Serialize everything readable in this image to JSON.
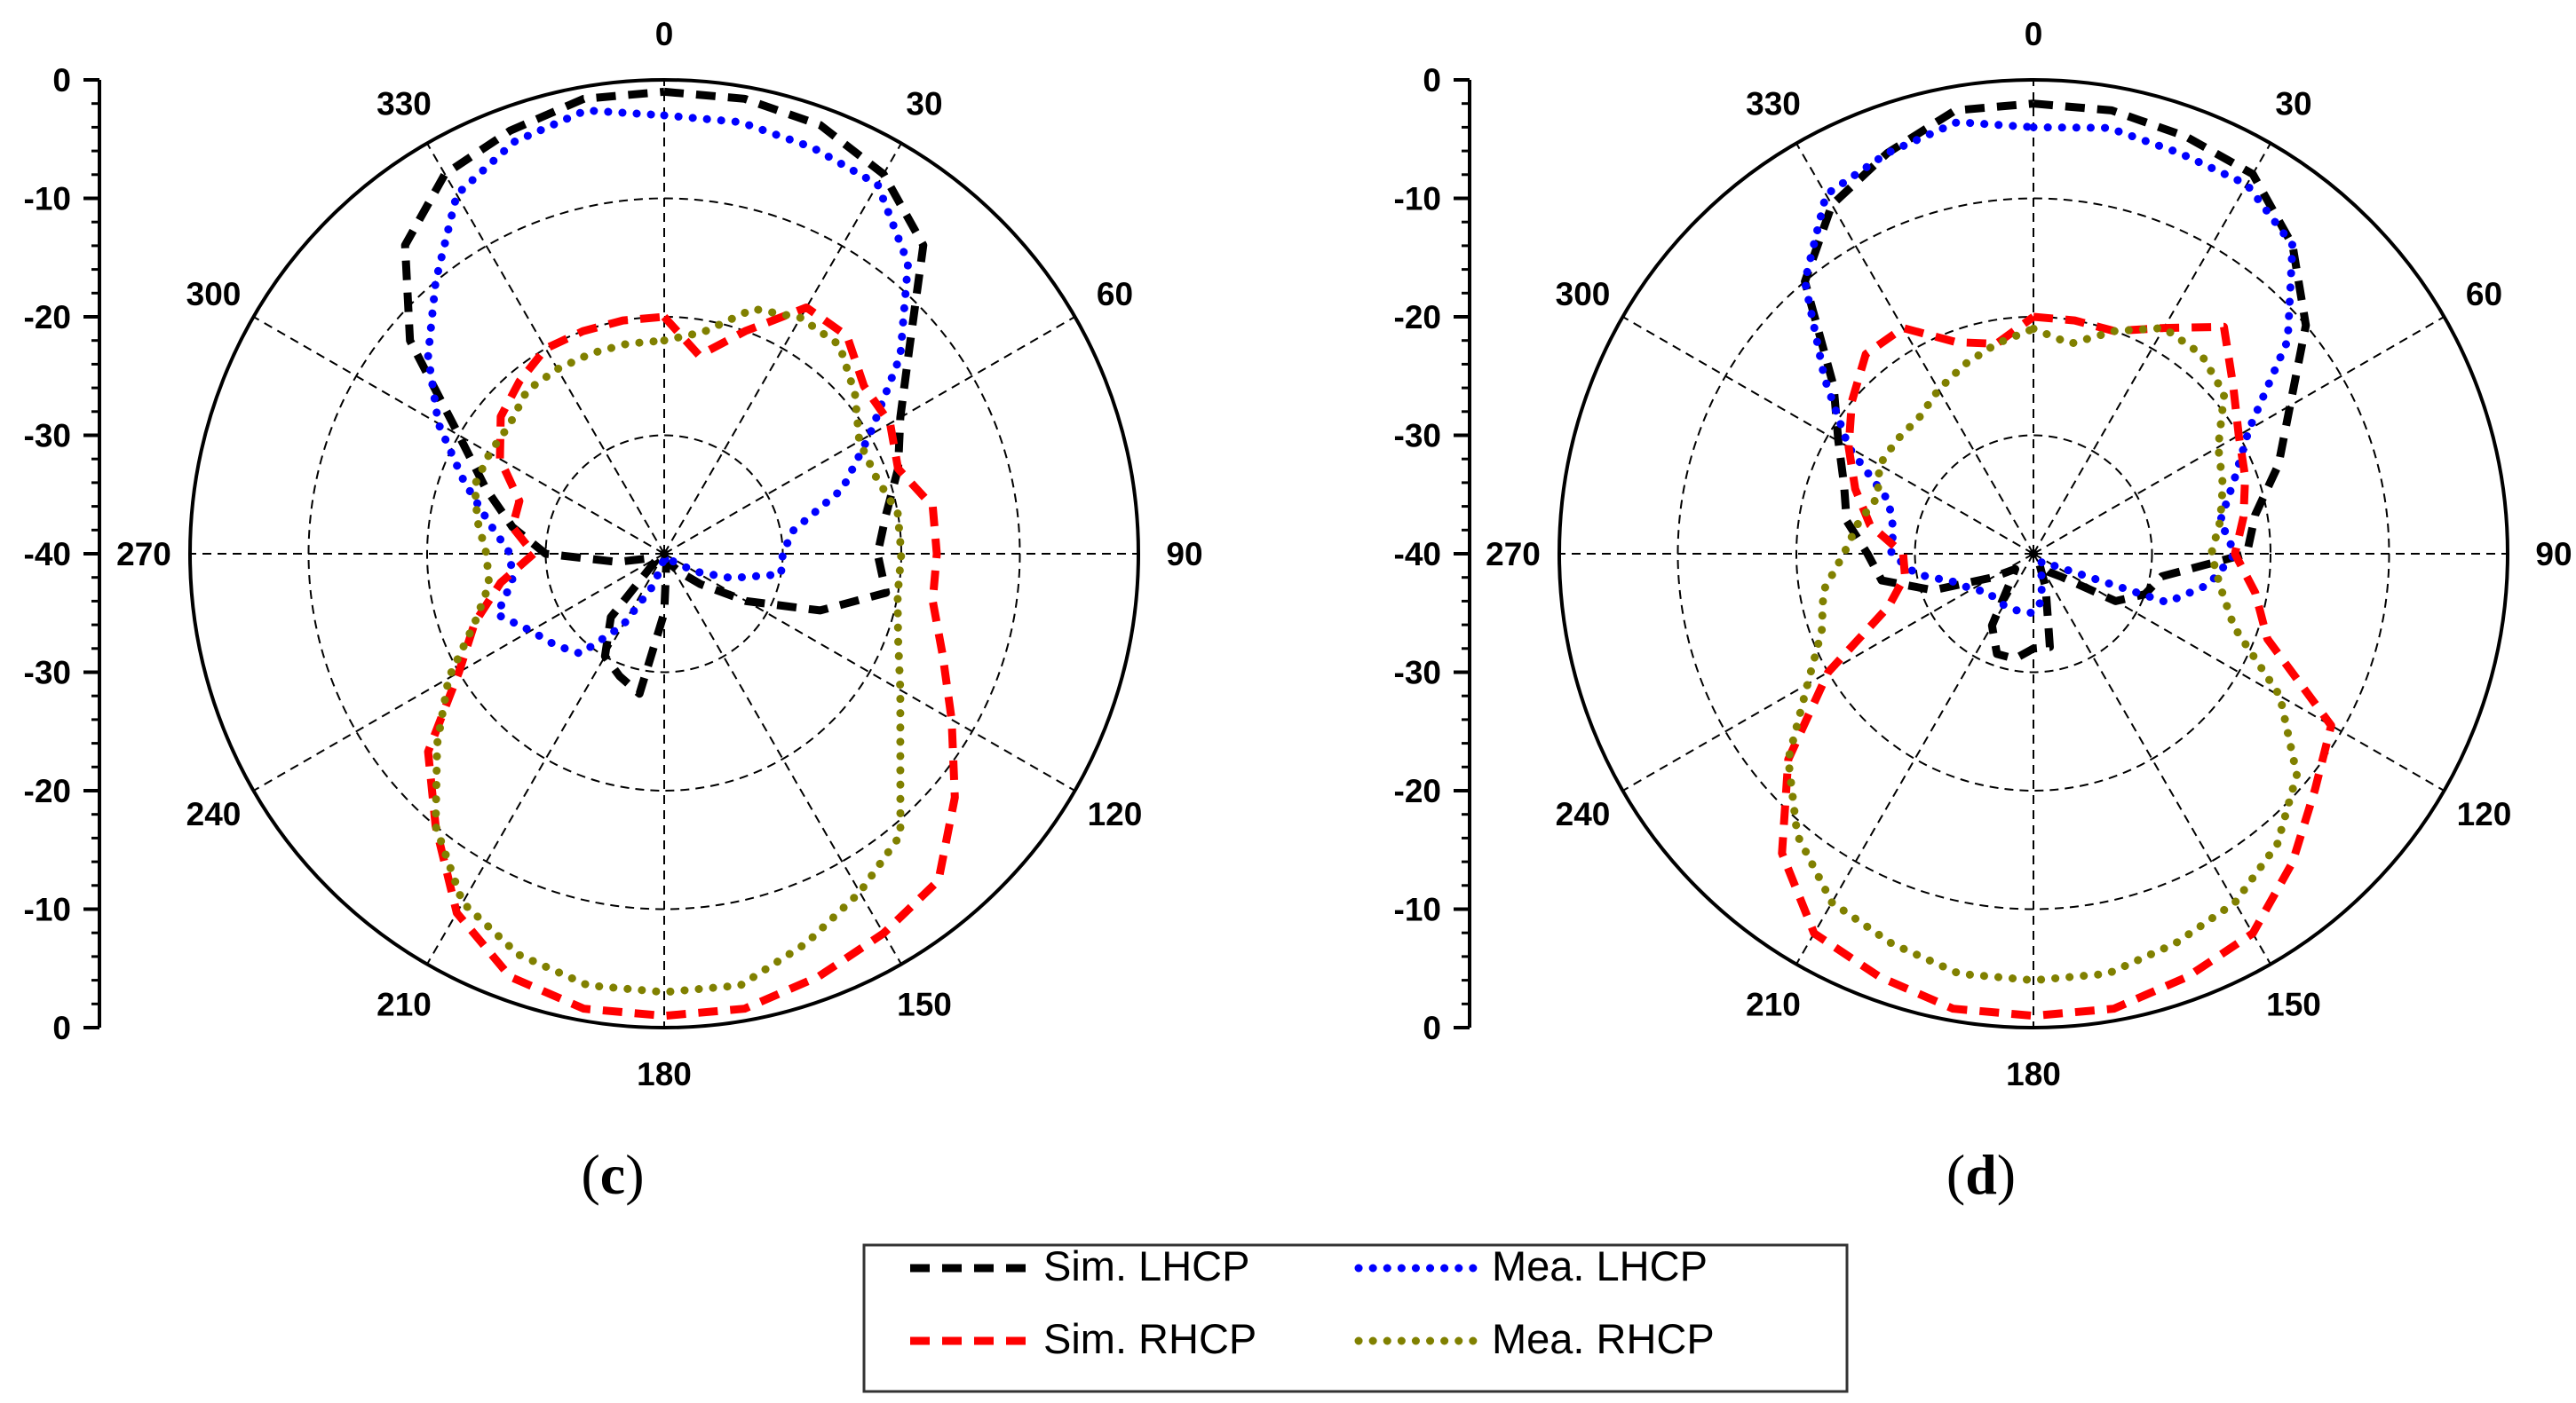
{
  "legend": {
    "entries": [
      {
        "label": "Sim. LHCP",
        "series": "sim_lhcp",
        "color": "#000000",
        "style": "dashed"
      },
      {
        "label": "Mea. LHCP",
        "series": "mea_lhcp",
        "color": "#0000ff",
        "style": "dotted"
      },
      {
        "label": "Sim. RHCP",
        "series": "sim_rhcp",
        "color": "#ff0000",
        "style": "dashed"
      },
      {
        "label": "Mea. RHCP",
        "series": "mea_rhcp",
        "color": "#808000",
        "style": "dotted"
      }
    ]
  },
  "chart_data": [
    {
      "type": "polar",
      "panel_label": "c",
      "r_axis": {
        "min": -40,
        "max": 0,
        "ticks": [
          0,
          -10,
          -20,
          -30,
          -40,
          -30,
          -20,
          -10,
          0
        ]
      },
      "angle_ticks": [
        0,
        30,
        60,
        90,
        120,
        150,
        180,
        210,
        240,
        270,
        300,
        330
      ],
      "grid_rings": [
        -30,
        -20,
        -10,
        0
      ],
      "series": [
        {
          "name": "Sim. LHCP",
          "key": "sim_lhcp",
          "color": "#000000",
          "style": "dashed",
          "angles": [
            0,
            10,
            20,
            30,
            40,
            50,
            60,
            70,
            80,
            90,
            100,
            110,
            120,
            130,
            140,
            150,
            160,
            170,
            180,
            190,
            200,
            210,
            220,
            230,
            240,
            250,
            260,
            270,
            280,
            290,
            300,
            310,
            320,
            330,
            340,
            350,
            360
          ],
          "values": [
            -1,
            -1,
            -1.5,
            -3,
            -6,
            -13,
            -17,
            -19,
            -21,
            -22,
            -21,
            -26,
            -32,
            -36,
            -38,
            -39,
            -39,
            -39,
            -35,
            -28,
            -29,
            -30,
            -33,
            -39,
            -39,
            -39,
            -36,
            -30,
            -27,
            -24,
            -20,
            -12,
            -6,
            -3,
            -2,
            -1,
            -1
          ]
        },
        {
          "name": "Mea. LHCP",
          "key": "mea_lhcp",
          "color": "#0000ff",
          "style": "dotted",
          "angles": [
            0,
            10,
            20,
            30,
            40,
            50,
            60,
            70,
            80,
            90,
            100,
            110,
            120,
            130,
            140,
            150,
            160,
            170,
            180,
            190,
            200,
            210,
            220,
            230,
            240,
            250,
            260,
            270,
            280,
            290,
            300,
            310,
            320,
            330,
            340,
            350,
            360
          ],
          "values": [
            -3,
            -3,
            -3.5,
            -4,
            -8,
            -14,
            -20,
            -24,
            -29,
            -30,
            -30,
            -34,
            -37,
            -39,
            -39,
            -39,
            -39,
            -39,
            -40,
            -39,
            -37,
            -33,
            -29,
            -28,
            -27,
            -25,
            -27,
            -27,
            -25,
            -22,
            -18,
            -14,
            -10,
            -5,
            -3,
            -2,
            -3
          ]
        },
        {
          "name": "Sim. RHCP",
          "key": "sim_rhcp",
          "color": "#ff0000",
          "style": "dashed",
          "angles": [
            0,
            10,
            20,
            30,
            40,
            50,
            60,
            70,
            80,
            90,
            100,
            110,
            120,
            130,
            140,
            150,
            160,
            170,
            180,
            190,
            200,
            210,
            220,
            230,
            240,
            250,
            260,
            270,
            280,
            290,
            300,
            310,
            320,
            330,
            340,
            350,
            360
          ],
          "values": [
            -20,
            -23,
            -20,
            -16,
            -16,
            -18,
            -18,
            -19,
            -17,
            -17,
            -17,
            -15,
            -12,
            -8,
            -4,
            -3,
            -2,
            -1,
            -1,
            -1,
            -2,
            -5,
            -10,
            -14,
            -20,
            -23,
            -26,
            -29,
            -27,
            -27,
            -24,
            -22,
            -21,
            -20,
            -20,
            -20,
            -20
          ]
        },
        {
          "name": "Mea. RHCP",
          "key": "mea_rhcp",
          "color": "#808000",
          "style": "dotted",
          "angles": [
            0,
            10,
            20,
            30,
            40,
            50,
            60,
            70,
            80,
            90,
            100,
            110,
            120,
            130,
            140,
            150,
            160,
            170,
            180,
            190,
            200,
            210,
            220,
            230,
            240,
            250,
            260,
            270,
            280,
            290,
            300,
            310,
            320,
            330,
            340,
            350,
            360
          ],
          "values": [
            -22,
            -21,
            -18,
            -17,
            -17,
            -19,
            -21,
            -21,
            -20,
            -20,
            -20,
            -19,
            -17,
            -14,
            -9,
            -7,
            -5,
            -3,
            -3,
            -3,
            -4,
            -6,
            -10,
            -15,
            -19,
            -23,
            -25,
            -25,
            -24,
            -23,
            -23,
            -23,
            -22,
            -22,
            -22,
            -22,
            -22
          ]
        }
      ]
    },
    {
      "type": "polar",
      "panel_label": "d",
      "r_axis": {
        "min": -40,
        "max": 0,
        "ticks": [
          0,
          -10,
          -20,
          -30,
          -40,
          -30,
          -20,
          -10,
          0
        ]
      },
      "angle_ticks": [
        0,
        30,
        60,
        90,
        120,
        150,
        180,
        210,
        240,
        270,
        300,
        330
      ],
      "grid_rings": [
        -30,
        -20,
        -10,
        0
      ],
      "series": [
        {
          "name": "Sim. LHCP",
          "key": "sim_lhcp",
          "color": "#000000",
          "style": "dashed",
          "angles": [
            0,
            10,
            20,
            30,
            40,
            50,
            60,
            70,
            80,
            90,
            100,
            110,
            120,
            130,
            140,
            150,
            160,
            170,
            180,
            190,
            200,
            210,
            220,
            230,
            240,
            250,
            260,
            270,
            280,
            290,
            300,
            310,
            320,
            330,
            340,
            350,
            360
          ],
          "values": [
            -2,
            -2,
            -2.5,
            -3,
            -6,
            -10,
            -15,
            -18,
            -21,
            -22,
            -29,
            -30,
            -32,
            -37,
            -38,
            -39,
            -37,
            -32,
            -32,
            -31,
            -31,
            -33,
            -37,
            -38,
            -36,
            -31,
            -27,
            -26,
            -24,
            -23,
            -21,
            -18,
            -10,
            -6,
            -4,
            -2,
            -2
          ]
        },
        {
          "name": "Mea. LHCP",
          "key": "mea_lhcp",
          "color": "#0000ff",
          "style": "dotted",
          "angles": [
            0,
            10,
            20,
            30,
            40,
            50,
            60,
            70,
            80,
            90,
            100,
            110,
            120,
            130,
            140,
            150,
            160,
            170,
            180,
            190,
            200,
            210,
            220,
            230,
            240,
            250,
            260,
            270,
            280,
            290,
            300,
            310,
            320,
            330,
            340,
            350,
            360
          ],
          "values": [
            -4,
            -3.5,
            -4,
            -4,
            -6,
            -12,
            -19,
            -22,
            -24,
            -23,
            -25,
            -28,
            -38,
            -39,
            -39,
            -39,
            -38,
            -36,
            -35,
            -35,
            -35,
            -35,
            -35,
            -35,
            -34,
            -33,
            -30,
            -28,
            -28,
            -27,
            -22,
            -17,
            -10,
            -5,
            -4,
            -3,
            -4
          ]
        },
        {
          "name": "Sim. RHCP",
          "key": "sim_rhcp",
          "color": "#ff0000",
          "style": "dashed",
          "angles": [
            0,
            10,
            20,
            30,
            40,
            50,
            60,
            70,
            80,
            90,
            100,
            110,
            120,
            130,
            140,
            150,
            160,
            170,
            180,
            190,
            200,
            210,
            220,
            230,
            240,
            250,
            260,
            270,
            280,
            290,
            300,
            310,
            320,
            330,
            340,
            350,
            360
          ],
          "values": [
            -20,
            -20,
            -20,
            -18,
            -15,
            -18,
            -20,
            -21,
            -22,
            -23,
            -21,
            -19,
            -11,
            -9,
            -6,
            -3,
            -2,
            -1,
            -1,
            -1,
            -2,
            -3,
            -7,
            -13,
            -20,
            -27,
            -29,
            -29,
            -26,
            -24,
            -22,
            -20,
            -18,
            -18,
            -21,
            -22,
            -20
          ]
        },
        {
          "name": "Mea. RHCP",
          "key": "mea_rhcp",
          "color": "#808000",
          "style": "dotted",
          "angles": [
            0,
            10,
            20,
            30,
            40,
            50,
            60,
            70,
            80,
            90,
            100,
            110,
            120,
            130,
            140,
            150,
            160,
            170,
            180,
            190,
            200,
            210,
            220,
            230,
            240,
            250,
            260,
            270,
            280,
            290,
            300,
            310,
            320,
            330,
            340,
            350,
            360
          ],
          "values": [
            -21,
            -22,
            -20,
            -18,
            -18,
            -19,
            -22,
            -23,
            -24,
            -25,
            -24,
            -22,
            -16,
            -11,
            -8,
            -6,
            -5,
            -4,
            -4,
            -4,
            -5,
            -6,
            -9,
            -13,
            -18,
            -21,
            -22,
            -24,
            -25,
            -26,
            -25,
            -25,
            -25,
            -24,
            -23,
            -22,
            -21
          ]
        }
      ]
    }
  ]
}
